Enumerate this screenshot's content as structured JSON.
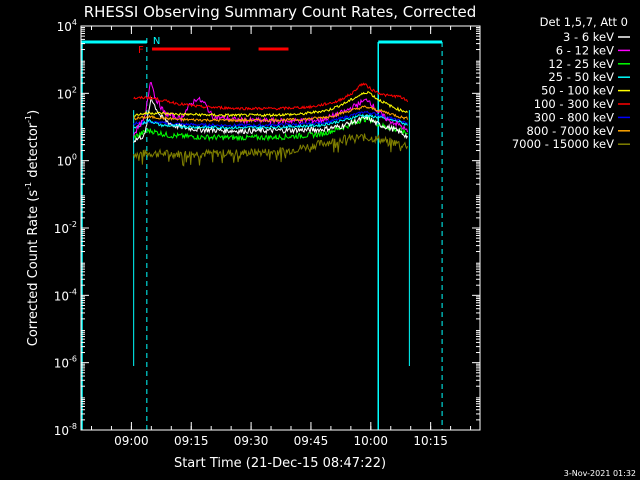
{
  "chart_data": {
    "type": "line",
    "title": "RHESSI Observing Summary Count Rates, Corrected",
    "xlabel": "Start Time (21-Dec-15 08:47:22)",
    "ylabel_parts": [
      "Corrected Count Rate (s",
      "-1",
      " detector",
      "-1",
      ")"
    ],
    "x_units": "minutes after 08:47:22",
    "xlim": [
      0,
      100
    ],
    "ylim_log10": [
      -8,
      4
    ],
    "x_ticks": [
      {
        "label": "09:00",
        "value": 12.63
      },
      {
        "label": "09:15",
        "value": 27.63
      },
      {
        "label": "09:30",
        "value": 42.63
      },
      {
        "label": "09:45",
        "value": 57.63
      },
      {
        "label": "10:00",
        "value": 72.63
      },
      {
        "label": "10:15",
        "value": 87.63
      }
    ],
    "y_ticks": [
      {
        "base": "10",
        "exp": "4",
        "value": 4
      },
      {
        "base": "10",
        "exp": "2",
        "value": 2
      },
      {
        "base": "10",
        "exp": "0",
        "value": 0
      },
      {
        "base": "10",
        "exp": "-2",
        "value": -2
      },
      {
        "base": "10",
        "exp": "-4",
        "value": -4
      },
      {
        "base": "10",
        "exp": "-6",
        "value": -6
      },
      {
        "base": "10",
        "exp": "-8",
        "value": -8
      }
    ],
    "legend_header": "Det 1,5,7, Att 0",
    "series": [
      {
        "name": "3 - 6 keV",
        "color": "#ffffff",
        "log10_values": [
          [
            13.2,
            0.6
          ],
          [
            16,
            0.75
          ],
          [
            17.6,
            1.9
          ],
          [
            18.2,
            1.7
          ],
          [
            20,
            1.3
          ],
          [
            23,
            1.05
          ],
          [
            26,
            0.98
          ],
          [
            30,
            0.92
          ],
          [
            40,
            0.88
          ],
          [
            50,
            0.9
          ],
          [
            60,
            0.92
          ],
          [
            65,
            1.02
          ],
          [
            70,
            1.22
          ],
          [
            72,
            1.28
          ],
          [
            74,
            1.1
          ],
          [
            78,
            0.95
          ],
          [
            80,
            0.85
          ],
          [
            82,
            0.7
          ]
        ]
      },
      {
        "name": "6 - 12 keV",
        "color": "#ff00ff",
        "log10_values": [
          [
            13.2,
            0.8
          ],
          [
            16,
            1.25
          ],
          [
            17.5,
            2.45
          ],
          [
            18.5,
            1.9
          ],
          [
            21,
            1.4
          ],
          [
            25,
            1.25
          ],
          [
            27,
            1.6
          ],
          [
            29,
            1.85
          ],
          [
            31,
            1.7
          ],
          [
            33,
            1.3
          ],
          [
            40,
            1.2
          ],
          [
            50,
            1.18
          ],
          [
            60,
            1.2
          ],
          [
            66,
            1.45
          ],
          [
            70,
            1.72
          ],
          [
            72,
            1.82
          ],
          [
            74,
            1.5
          ],
          [
            77,
            1.2
          ],
          [
            80,
            1.05
          ],
          [
            82,
            0.85
          ]
        ]
      },
      {
        "name": "12 - 25 keV",
        "color": "#00ff00",
        "log10_values": [
          [
            13.2,
            0.7
          ],
          [
            17,
            0.9
          ],
          [
            22,
            0.75
          ],
          [
            30,
            0.7
          ],
          [
            40,
            0.68
          ],
          [
            50,
            0.7
          ],
          [
            60,
            0.78
          ],
          [
            66,
            1.0
          ],
          [
            70,
            1.2
          ],
          [
            72,
            1.25
          ],
          [
            75,
            1.05
          ],
          [
            78,
            0.95
          ],
          [
            80,
            0.9
          ],
          [
            82,
            0.8
          ]
        ]
      },
      {
        "name": "25 - 50 keV",
        "color": "#00ffff",
        "log10_values": [
          [
            13.2,
            0.95
          ],
          [
            17,
            1.2
          ],
          [
            20,
            1.05
          ],
          [
            28,
            1.0
          ],
          [
            40,
            0.98
          ],
          [
            50,
            1.0
          ],
          [
            60,
            1.05
          ],
          [
            66,
            1.2
          ],
          [
            70,
            1.35
          ],
          [
            74,
            1.3
          ],
          [
            78,
            1.2
          ],
          [
            80,
            1.15
          ],
          [
            82,
            1.05
          ]
        ]
      },
      {
        "name": "50 - 100 keV",
        "color": "#ffff00",
        "log10_values": [
          [
            13.2,
            1.35
          ],
          [
            17,
            1.42
          ],
          [
            25,
            1.38
          ],
          [
            35,
            1.35
          ],
          [
            45,
            1.35
          ],
          [
            55,
            1.38
          ],
          [
            62,
            1.5
          ],
          [
            66,
            1.7
          ],
          [
            70,
            1.95
          ],
          [
            72,
            2.05
          ],
          [
            74,
            1.85
          ],
          [
            78,
            1.6
          ],
          [
            80,
            1.5
          ],
          [
            82,
            1.45
          ]
        ]
      },
      {
        "name": "100 - 300 keV",
        "color": "#ff0000",
        "log10_values": [
          [
            13.2,
            1.85
          ],
          [
            17,
            1.88
          ],
          [
            20,
            1.8
          ],
          [
            25,
            1.68
          ],
          [
            30,
            1.6
          ],
          [
            40,
            1.55
          ],
          [
            50,
            1.55
          ],
          [
            58,
            1.6
          ],
          [
            64,
            1.75
          ],
          [
            68,
            2.0
          ],
          [
            70,
            2.25
          ],
          [
            71,
            2.28
          ],
          [
            73,
            2.1
          ],
          [
            76,
            1.95
          ],
          [
            80,
            1.9
          ],
          [
            82,
            1.75
          ]
        ]
      },
      {
        "name": "300 - 800 keV",
        "color": "#0000ff",
        "log10_values": [
          [
            13.2,
            1.1
          ],
          [
            17,
            1.15
          ],
          [
            25,
            1.08
          ],
          [
            35,
            1.05
          ],
          [
            45,
            1.05
          ],
          [
            55,
            1.08
          ],
          [
            62,
            1.15
          ],
          [
            68,
            1.35
          ],
          [
            71,
            1.45
          ],
          [
            74,
            1.38
          ],
          [
            78,
            1.25
          ],
          [
            80,
            1.18
          ],
          [
            82,
            1.1
          ]
        ]
      },
      {
        "name": "800 - 7000 keV",
        "color": "#ffa500",
        "log10_values": [
          [
            13.2,
            1.25
          ],
          [
            17,
            1.3
          ],
          [
            25,
            1.22
          ],
          [
            35,
            1.2
          ],
          [
            45,
            1.2
          ],
          [
            55,
            1.22
          ],
          [
            62,
            1.3
          ],
          [
            68,
            1.5
          ],
          [
            71,
            1.6
          ],
          [
            74,
            1.52
          ],
          [
            78,
            1.38
          ],
          [
            80,
            1.3
          ],
          [
            82,
            1.25
          ]
        ]
      },
      {
        "name": "7000 - 15000 keV",
        "color": "#808000",
        "log10_values": [
          [
            13.2,
            0.2
          ],
          [
            17,
            0.22
          ],
          [
            25,
            0.2
          ],
          [
            35,
            0.22
          ],
          [
            45,
            0.25
          ],
          [
            52,
            0.3
          ],
          [
            58,
            0.45
          ],
          [
            62,
            0.55
          ],
          [
            66,
            0.65
          ],
          [
            70,
            0.7
          ],
          [
            74,
            0.65
          ],
          [
            78,
            0.55
          ],
          [
            80,
            0.5
          ],
          [
            82,
            0.45
          ]
        ]
      }
    ],
    "overlays": {
      "night_periods": [
        [
          0,
          16.5
        ],
        [
          74.5,
          90.5
        ]
      ],
      "night_label": "N",
      "saa_marker": {
        "x": 16.5,
        "label": "N"
      },
      "flare_flag": {
        "label": "F",
        "segments": [
          [
            17.8,
            37.4
          ],
          [
            44.5,
            52
          ]
        ]
      },
      "data_gaps": [
        [
          0,
          13.2
        ],
        [
          82.3,
          100
        ]
      ],
      "colors": {
        "night": "#00ffff",
        "flare": "#ff0000"
      }
    }
  },
  "footer": {
    "timestamp": "3-Nov-2021 01:32"
  }
}
